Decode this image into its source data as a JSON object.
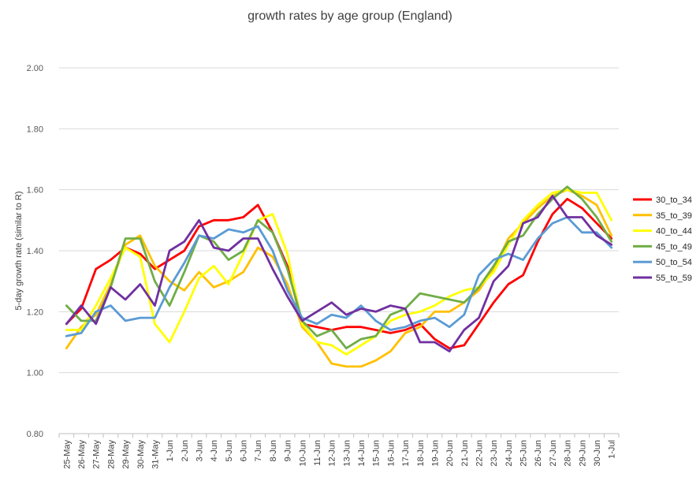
{
  "chart_data": {
    "type": "line",
    "title": "growth rates by age group (England)",
    "ylabel": "5-day growth rate (similar to R)",
    "xlabel": "",
    "ylim": [
      0.8,
      2.0
    ],
    "yticks": [
      "0.80",
      "1.00",
      "1.20",
      "1.40",
      "1.60",
      "1.80",
      "2.00"
    ],
    "grid": true,
    "legend_position": "right",
    "categories": [
      "25-May",
      "26-May",
      "27-May",
      "28-May",
      "29-May",
      "30-May",
      "31-May",
      "1-Jun",
      "2-Jun",
      "3-Jun",
      "4-Jun",
      "5-Jun",
      "6-Jun",
      "7-Jun",
      "8-Jun",
      "9-Jun",
      "10-Jun",
      "11-Jun",
      "12-Jun",
      "13-Jun",
      "14-Jun",
      "15-Jun",
      "16-Jun",
      "17-Jun",
      "18-Jun",
      "19-Jun",
      "20-Jun",
      "21-Jun",
      "22-Jun",
      "23-Jun",
      "24-Jun",
      "25-Jun",
      "26-Jun",
      "27-Jun",
      "28-Jun",
      "29-Jun",
      "30-Jun",
      "1-Jul"
    ],
    "series": [
      {
        "name": "30_to_34",
        "color": "#ff0000",
        "values": [
          1.16,
          1.21,
          1.34,
          1.37,
          1.41,
          1.39,
          1.34,
          1.37,
          1.4,
          1.48,
          1.5,
          1.5,
          1.51,
          1.55,
          1.46,
          1.35,
          1.16,
          1.15,
          1.14,
          1.15,
          1.15,
          1.14,
          1.13,
          1.14,
          1.16,
          1.11,
          1.08,
          1.09,
          1.16,
          1.23,
          1.29,
          1.32,
          1.43,
          1.52,
          1.57,
          1.54,
          1.49,
          1.44
        ]
      },
      {
        "name": "35_to_39",
        "color": "#ffc000",
        "values": [
          1.08,
          1.15,
          1.19,
          1.29,
          1.42,
          1.45,
          1.35,
          1.3,
          1.27,
          1.33,
          1.28,
          1.3,
          1.33,
          1.41,
          1.38,
          1.29,
          1.15,
          1.1,
          1.03,
          1.02,
          1.02,
          1.04,
          1.07,
          1.13,
          1.15,
          1.2,
          1.2,
          1.23,
          1.27,
          1.34,
          1.44,
          1.49,
          1.54,
          1.58,
          1.6,
          1.58,
          1.55,
          1.45
        ]
      },
      {
        "name": "40_to_44",
        "color": "#ffff00",
        "values": [
          1.14,
          1.14,
          1.22,
          1.31,
          1.41,
          1.38,
          1.16,
          1.1,
          1.2,
          1.31,
          1.35,
          1.29,
          1.39,
          1.5,
          1.52,
          1.39,
          1.16,
          1.1,
          1.09,
          1.06,
          1.09,
          1.12,
          1.17,
          1.19,
          1.2,
          1.22,
          1.25,
          1.27,
          1.28,
          1.33,
          1.42,
          1.5,
          1.55,
          1.59,
          1.6,
          1.59,
          1.59,
          1.5
        ]
      },
      {
        "name": "45_to_49",
        "color": "#70ad47",
        "values": [
          1.22,
          1.17,
          1.17,
          1.28,
          1.44,
          1.44,
          1.3,
          1.22,
          1.33,
          1.45,
          1.43,
          1.37,
          1.4,
          1.5,
          1.46,
          1.34,
          1.17,
          1.12,
          1.14,
          1.08,
          1.11,
          1.12,
          1.19,
          1.21,
          1.26,
          1.25,
          1.24,
          1.23,
          1.28,
          1.35,
          1.43,
          1.45,
          1.52,
          1.57,
          1.61,
          1.57,
          1.51,
          1.43
        ]
      },
      {
        "name": "50_to_54",
        "color": "#5b9bd5",
        "values": [
          1.12,
          1.13,
          1.2,
          1.22,
          1.17,
          1.18,
          1.18,
          1.28,
          1.36,
          1.45,
          1.44,
          1.47,
          1.46,
          1.48,
          1.4,
          1.27,
          1.18,
          1.16,
          1.19,
          1.18,
          1.22,
          1.17,
          1.14,
          1.15,
          1.17,
          1.18,
          1.15,
          1.19,
          1.32,
          1.37,
          1.39,
          1.37,
          1.44,
          1.49,
          1.51,
          1.46,
          1.46,
          1.41
        ]
      },
      {
        "name": "55_to_59",
        "color": "#7030a0",
        "values": [
          1.16,
          1.22,
          1.16,
          1.28,
          1.24,
          1.29,
          1.22,
          1.4,
          1.43,
          1.5,
          1.41,
          1.4,
          1.44,
          1.44,
          1.34,
          1.25,
          1.17,
          1.2,
          1.23,
          1.19,
          1.21,
          1.2,
          1.22,
          1.21,
          1.1,
          1.1,
          1.07,
          1.14,
          1.18,
          1.3,
          1.35,
          1.49,
          1.51,
          1.58,
          1.51,
          1.51,
          1.45,
          1.42
        ]
      }
    ]
  }
}
